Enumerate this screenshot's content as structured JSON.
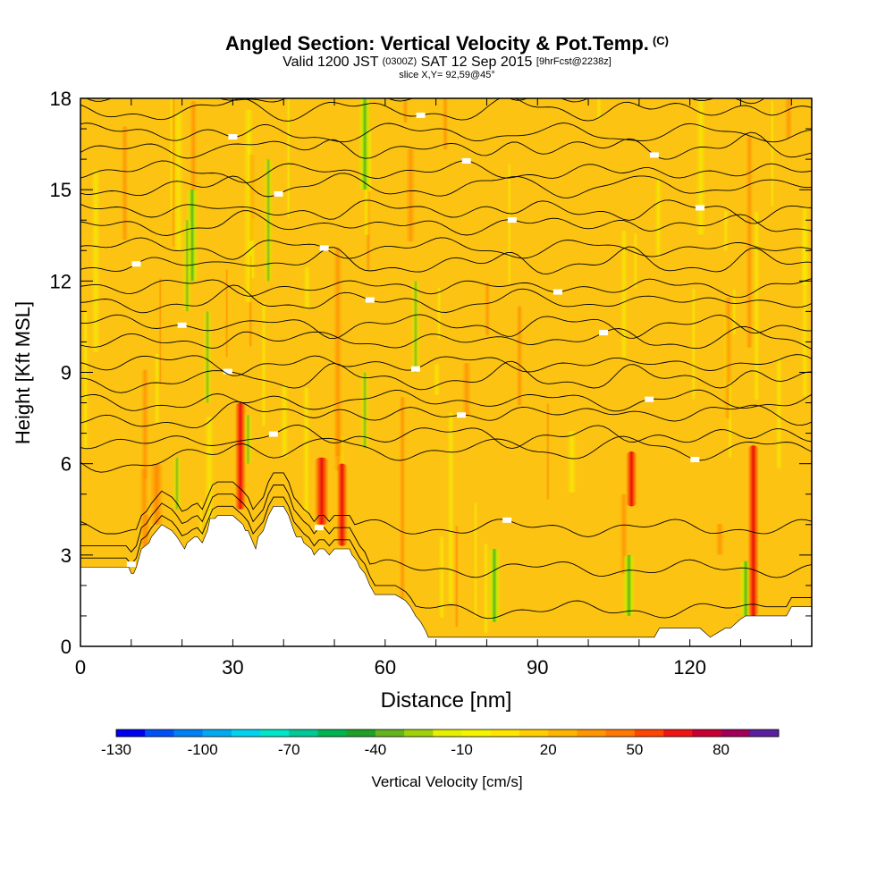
{
  "title": {
    "main": "Angled Section: Vertical Velocity & Pot.Temp.",
    "main_suffix": "(C)",
    "valid_prefix": "Valid 1200 JST",
    "valid_utc": "(0300Z)",
    "valid_date": "SAT 12 Sep 2015",
    "valid_fcst": "[9hrFcst@2238z]",
    "slice": "slice X,Y= 92,59@45°"
  },
  "chart_data": {
    "type": "heatmap",
    "xlabel": "Distance [nm]",
    "ylabel": "Height [Kft MSL]",
    "xlim": [
      0,
      144
    ],
    "ylim": [
      0,
      18
    ],
    "xticks": [
      0,
      30,
      60,
      90,
      120
    ],
    "yticks": [
      0,
      3,
      6,
      9,
      12,
      15,
      18
    ],
    "colorbar": {
      "label": "Vertical Velocity [cm/s]",
      "tick_labels": [
        "-130",
        "-100",
        "-70",
        "-40",
        "-10",
        "20",
        "50",
        "80"
      ],
      "tick_values": [
        -130,
        -100,
        -70,
        -40,
        -10,
        20,
        50,
        80
      ],
      "bins": [
        -130,
        -120,
        -110,
        -100,
        -90,
        -80,
        -70,
        -60,
        -50,
        -40,
        -30,
        -20,
        -10,
        0,
        10,
        20,
        30,
        40,
        50,
        60,
        70,
        80,
        90
      ],
      "colors": [
        "#0000f0",
        "#0050f5",
        "#0080f5",
        "#00aaf0",
        "#00d2f0",
        "#00e6c8",
        "#00c896",
        "#00b450",
        "#1ea028",
        "#64b41e",
        "#a0d20a",
        "#e6f000",
        "#f5f500",
        "#ffe600",
        "#ffcd00",
        "#ffb400",
        "#ff9600",
        "#ff7800",
        "#ff4600",
        "#f01414",
        "#c80032",
        "#a0005a",
        "#5a1ea0"
      ]
    },
    "field_background": "#fcc313",
    "updrafts_cm_s": [
      {
        "x": 31.5,
        "y_range": [
          4.5,
          8
        ],
        "peak": 60
      },
      {
        "x": 51.5,
        "y_range": [
          3.3,
          6
        ],
        "peak": 50
      },
      {
        "x": 47.5,
        "y_range": [
          4,
          6.2
        ],
        "peak": 40
      },
      {
        "x": 108.5,
        "y_range": [
          4.6,
          6.4
        ],
        "peak": 50
      },
      {
        "x": 132.5,
        "y_range": [
          1,
          6.6
        ],
        "peak": 60
      },
      {
        "x": 15,
        "y_range": [
          4,
          6
        ],
        "peak": 35
      }
    ],
    "downdrafts_cm_s": [
      {
        "x": 108,
        "y_range": [
          1,
          3
        ],
        "peak": -35
      },
      {
        "x": 131,
        "y_range": [
          1,
          2.8
        ],
        "peak": -35
      },
      {
        "x": 81.5,
        "y_range": [
          0.8,
          3.2
        ],
        "peak": -30
      },
      {
        "x": 56,
        "y_range": [
          15,
          18
        ],
        "peak": -25
      },
      {
        "x": 22,
        "y_range": [
          12,
          15
        ],
        "peak": -20
      }
    ],
    "isentropes_c": {
      "low_levels": [
        30,
        32,
        34
      ],
      "upper_start": 36,
      "upper_step": 1,
      "count_upper": 21
    },
    "terrain_kft": {
      "x": [
        0,
        4,
        8,
        9.5,
        10,
        10.5,
        11,
        12,
        13.5,
        14,
        16,
        18,
        19,
        20.5,
        21,
        22.5,
        23,
        24,
        25,
        25.5,
        26.5,
        27,
        28,
        29,
        30,
        32,
        32.5,
        33,
        34.5,
        35,
        36,
        37,
        38,
        40,
        41,
        42,
        42.5,
        43.5,
        44,
        45.5,
        46,
        47,
        48,
        49,
        50,
        51,
        53,
        53.5,
        54.5,
        55,
        56,
        56.5,
        57,
        58,
        58.5,
        59.5,
        60,
        62,
        64,
        65,
        66,
        67,
        68,
        68.5,
        70,
        75,
        80,
        85,
        90,
        95,
        100,
        105,
        113,
        114,
        115,
        117,
        119,
        120,
        121,
        122,
        124,
        127,
        128,
        130,
        131,
        133,
        135,
        138,
        139,
        140,
        144
      ],
      "y": [
        2.6,
        2.6,
        2.6,
        2.6,
        2.4,
        2.4,
        2.6,
        3.2,
        3.4,
        3.6,
        4,
        3.8,
        3.6,
        3.2,
        3.4,
        3.6,
        3.6,
        3.4,
        3.8,
        4.2,
        4.2,
        4.3,
        4.3,
        4.3,
        4.3,
        4,
        3.8,
        3.8,
        3.2,
        3.6,
        3.8,
        4.3,
        4.6,
        4.6,
        4.3,
        3.8,
        3.6,
        3.6,
        3.4,
        3.2,
        3,
        3.2,
        3.2,
        3,
        3.2,
        3.2,
        3.2,
        3,
        2.8,
        2.6,
        2.4,
        2.2,
        2,
        1.7,
        1.7,
        1.7,
        1.7,
        1.7,
        1.5,
        1.3,
        1,
        0.8,
        0.5,
        0.3,
        0.3,
        0.3,
        0.3,
        0.3,
        0.3,
        0.3,
        0.3,
        0.3,
        0.3,
        0.6,
        0.6,
        0.6,
        0.6,
        0.6,
        0.6,
        0.6,
        0.3,
        0.6,
        0.6,
        0.9,
        1,
        1,
        1,
        1,
        1,
        1.3,
        1.3
      ]
    }
  }
}
